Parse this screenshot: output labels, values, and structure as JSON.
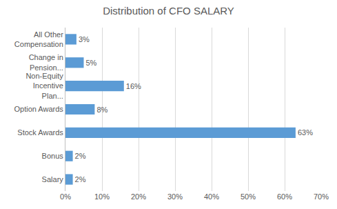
{
  "chart_data": {
    "type": "bar",
    "title": "Distribution of CFO SALARY",
    "orientation": "horizontal",
    "categories": [
      "All Other Compensation",
      "Change in Pension...",
      "Non-Equity Incentive Plan...",
      "Option Awards",
      "Stock Awards",
      "Bonus",
      "Salary"
    ],
    "values": [
      3,
      5,
      16,
      8,
      63,
      2,
      2
    ],
    "value_labels": [
      "3%",
      "5%",
      "16%",
      "8%",
      "63%",
      "2%",
      "2%"
    ],
    "color": "#5b9bd5",
    "xlim": [
      0,
      70
    ],
    "xticks": [
      {
        "value": 0,
        "label": "0%"
      },
      {
        "value": 10,
        "label": "10%"
      },
      {
        "value": 20,
        "label": "20%"
      },
      {
        "value": 30,
        "label": "30%"
      },
      {
        "value": 40,
        "label": "40%"
      },
      {
        "value": 50,
        "label": "50%"
      },
      {
        "value": 60,
        "label": "60%"
      },
      {
        "value": 70,
        "label": "70%"
      }
    ],
    "grid": true,
    "data_labels": true
  }
}
